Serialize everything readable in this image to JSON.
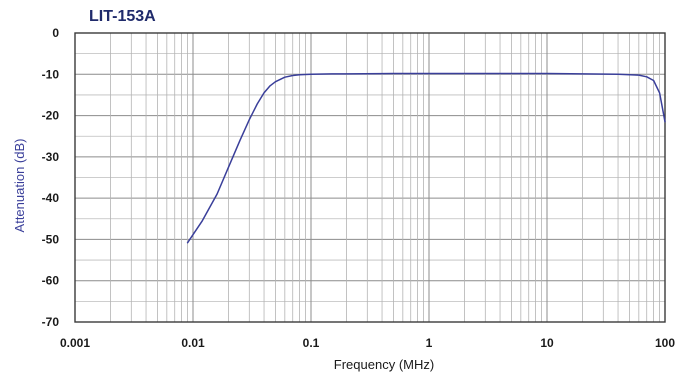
{
  "chart_data": {
    "type": "line",
    "title": "LIT-153A",
    "xlabel": "Frequency (MHz)",
    "ylabel": "Attenuation (dB)",
    "x_scale": "log",
    "xlim": [
      0.001,
      100
    ],
    "ylim": [
      -70,
      0
    ],
    "x_ticks": [
      0.001,
      0.01,
      0.1,
      1,
      10,
      100
    ],
    "x_tick_labels": [
      "0.001",
      "0.01",
      "0.1",
      "1",
      "10",
      "100"
    ],
    "y_ticks": [
      0,
      -10,
      -20,
      -30,
      -40,
      -50,
      -60,
      -70
    ],
    "y_tick_labels": [
      "0",
      "-10",
      "-20",
      "-30",
      "-40",
      "-50",
      "-60",
      "-70"
    ],
    "grid": true,
    "series": [
      {
        "color": "#3a3f9a",
        "x": [
          0.009,
          0.012,
          0.016,
          0.02,
          0.025,
          0.03,
          0.035,
          0.04,
          0.045,
          0.05,
          0.06,
          0.07,
          0.08,
          0.1,
          0.15,
          0.2,
          0.5,
          1,
          2,
          5,
          10,
          20,
          40,
          60,
          70,
          80,
          90,
          100
        ],
        "y": [
          -50.8,
          -45.5,
          -39.0,
          -32.5,
          -26.0,
          -21.0,
          -17.2,
          -14.5,
          -12.8,
          -11.8,
          -10.7,
          -10.3,
          -10.1,
          -10.0,
          -9.9,
          -9.9,
          -9.8,
          -9.8,
          -9.8,
          -9.8,
          -9.8,
          -9.9,
          -10.0,
          -10.2,
          -10.6,
          -11.5,
          -14.5,
          -21.5
        ]
      }
    ]
  }
}
